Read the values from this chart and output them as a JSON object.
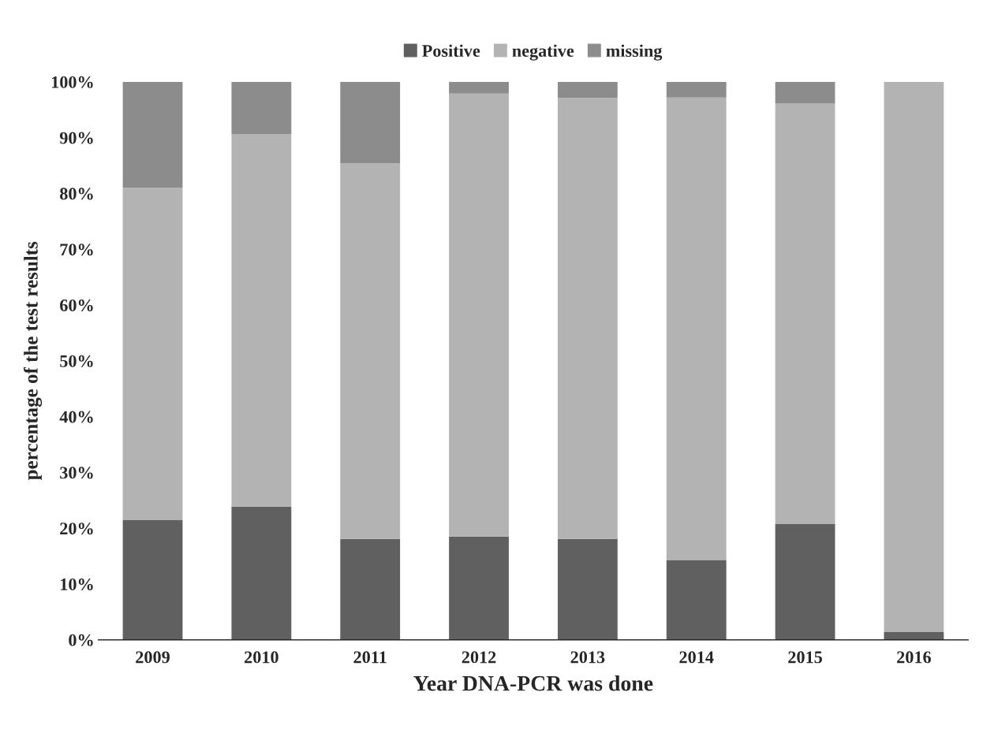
{
  "chart_data": {
    "type": "bar",
    "stacked": true,
    "xlabel": "Year DNA-PCR was done",
    "ylabel": "percentage of the test results",
    "categories": [
      "2009",
      "2010",
      "2011",
      "2012",
      "2013",
      "2014",
      "2015",
      "2016"
    ],
    "series": [
      {
        "name": "Positive",
        "color": "#606060",
        "values": [
          21.5,
          23.9,
          18.1,
          18.5,
          18.1,
          14.3,
          20.8,
          1.4
        ]
      },
      {
        "name": "negative",
        "color": "#b3b3b3",
        "values": [
          59.5,
          66.7,
          67.3,
          79.4,
          79.0,
          82.9,
          75.3,
          98.6
        ]
      },
      {
        "name": "missing",
        "color": "#8c8c8c",
        "values": [
          19.0,
          9.4,
          14.6,
          2.1,
          2.9,
          2.8,
          3.9,
          0
        ]
      }
    ],
    "ylim": [
      0,
      100
    ],
    "yticks": [
      {
        "value": 0,
        "label": "0%"
      },
      {
        "value": 10,
        "label": "10%"
      },
      {
        "value": 20,
        "label": "20%"
      },
      {
        "value": 30,
        "label": "30%"
      },
      {
        "value": 40,
        "label": "40%"
      },
      {
        "value": 50,
        "label": "50%"
      },
      {
        "value": 60,
        "label": "60%"
      },
      {
        "value": 70,
        "label": "70%"
      },
      {
        "value": 80,
        "label": "80%"
      },
      {
        "value": 90,
        "label": "90%"
      },
      {
        "value": 100,
        "label": "100%"
      }
    ],
    "legend": "top",
    "grid": false
  }
}
